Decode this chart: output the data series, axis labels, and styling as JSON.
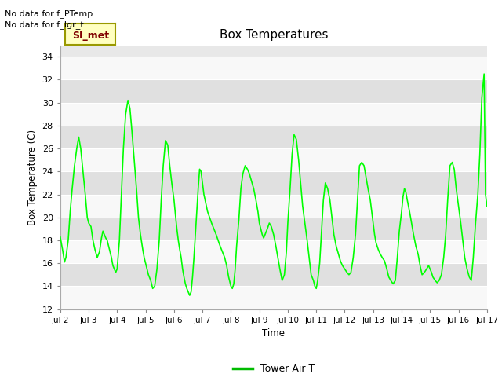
{
  "title": "Box Temperatures",
  "ylabel": "Box Temperature (C)",
  "xlabel": "Time",
  "ylim": [
    12,
    35
  ],
  "yticks": [
    12,
    14,
    16,
    18,
    20,
    22,
    24,
    26,
    28,
    30,
    32,
    34
  ],
  "xtick_labels": [
    "Jul 2",
    "Jul 3",
    "Jul 4",
    "Jul 5",
    "Jul 6",
    "Jul 7",
    "Jul 8",
    "Jul 9",
    "Jul 10",
    "Jul 11",
    "Jul 12",
    "Jul 13",
    "Jul 14",
    "Jul 15",
    "Jul 16",
    "Jul 17"
  ],
  "no_data_texts": [
    "No data for f_PTemp",
    "No data for f_lgr_t"
  ],
  "tab_label": "SI_met",
  "tab_color_bg": "#ffffc0",
  "tab_color_text": "#800000",
  "tab_color_border": "#999900",
  "line_color": "#00ff00",
  "line_width": 1.2,
  "legend_label": "Tower Air T",
  "legend_line_color": "#00bb00",
  "bg_color": "#ffffff",
  "plot_bg_color": "#e8e8e8",
  "x_values": [
    0.0,
    0.08,
    0.15,
    0.2,
    0.28,
    0.35,
    0.42,
    0.5,
    0.58,
    0.65,
    0.72,
    0.8,
    0.88,
    0.95,
    1.0,
    1.08,
    1.15,
    1.22,
    1.3,
    1.38,
    1.45,
    1.5,
    1.55,
    1.6,
    1.65,
    1.7,
    1.75,
    1.8,
    1.85,
    1.9,
    1.95,
    2.0,
    2.08,
    2.15,
    2.22,
    2.3,
    2.38,
    2.45,
    2.52,
    2.6,
    2.68,
    2.75,
    2.82,
    2.9,
    2.95,
    3.0,
    3.05,
    3.1,
    3.18,
    3.25,
    3.32,
    3.4,
    3.48,
    3.55,
    3.62,
    3.7,
    3.78,
    3.85,
    3.92,
    4.0,
    4.05,
    4.1,
    4.15,
    4.2,
    4.25,
    4.3,
    4.35,
    4.4,
    4.45,
    4.5,
    4.55,
    4.6,
    4.65,
    4.7,
    4.75,
    4.8,
    4.85,
    4.9,
    4.95,
    5.0,
    5.05,
    5.12,
    5.18,
    5.25,
    5.32,
    5.4,
    5.48,
    5.55,
    5.62,
    5.7,
    5.78,
    5.85,
    5.92,
    6.0,
    6.05,
    6.1,
    6.15,
    6.2,
    6.28,
    6.35,
    6.42,
    6.5,
    6.58,
    6.65,
    6.72,
    6.8,
    6.88,
    6.95,
    7.0,
    7.05,
    7.1,
    7.15,
    7.2,
    7.28,
    7.35,
    7.42,
    7.5,
    7.58,
    7.65,
    7.72,
    7.8,
    7.88,
    7.95,
    8.0,
    8.08,
    8.15,
    8.22,
    8.3,
    8.38,
    8.45,
    8.52,
    8.6,
    8.68,
    8.75,
    8.82,
    8.9,
    8.95,
    9.0,
    9.05,
    9.12,
    9.18,
    9.25,
    9.32,
    9.4,
    9.48,
    9.55,
    9.62,
    9.7,
    9.78,
    9.85,
    9.92,
    10.0,
    10.08,
    10.15,
    10.22,
    10.3,
    10.38,
    10.45,
    10.52,
    10.6,
    10.68,
    10.75,
    10.82,
    10.9,
    10.95,
    11.0,
    11.05,
    11.1,
    11.18,
    11.25,
    11.32,
    11.4,
    11.48,
    11.55,
    11.62,
    11.7,
    11.78,
    11.85,
    11.92,
    12.0,
    12.05,
    12.1,
    12.15,
    12.2,
    12.28,
    12.35,
    12.42,
    12.5,
    12.58,
    12.65,
    12.72,
    12.8,
    12.88,
    12.95,
    13.0,
    13.05,
    13.1,
    13.18,
    13.25,
    13.32,
    13.4,
    13.48,
    13.55,
    13.62,
    13.7,
    13.78,
    13.85,
    13.92,
    14.0,
    14.08,
    14.15,
    14.22,
    14.3,
    14.38,
    14.45,
    14.52,
    14.6,
    14.68,
    14.75,
    14.82,
    14.9,
    14.95,
    15.0
  ],
  "y_values": [
    18.3,
    17.2,
    16.1,
    16.5,
    18.0,
    20.5,
    22.5,
    24.5,
    26.0,
    27.0,
    26.0,
    24.0,
    22.0,
    20.0,
    19.5,
    19.2,
    18.0,
    17.2,
    16.5,
    17.0,
    18.2,
    18.8,
    18.5,
    18.2,
    18.0,
    17.5,
    17.0,
    16.5,
    15.8,
    15.5,
    15.2,
    15.5,
    18.0,
    22.0,
    26.0,
    29.0,
    30.2,
    29.5,
    27.5,
    25.0,
    22.5,
    20.0,
    18.5,
    17.2,
    16.5,
    16.0,
    15.5,
    15.0,
    14.5,
    13.8,
    14.0,
    15.5,
    18.0,
    21.5,
    24.5,
    26.7,
    26.3,
    24.5,
    23.0,
    21.5,
    20.2,
    19.0,
    18.0,
    17.2,
    16.5,
    15.5,
    14.8,
    14.2,
    13.8,
    13.5,
    13.2,
    13.5,
    14.8,
    16.5,
    18.5,
    20.5,
    22.5,
    24.2,
    24.0,
    23.0,
    22.0,
    21.2,
    20.5,
    20.0,
    19.5,
    19.0,
    18.5,
    18.0,
    17.5,
    17.0,
    16.5,
    15.8,
    14.8,
    14.0,
    13.8,
    14.2,
    15.5,
    17.5,
    19.8,
    22.5,
    23.8,
    24.5,
    24.2,
    23.8,
    23.2,
    22.5,
    21.5,
    20.5,
    19.5,
    19.0,
    18.5,
    18.2,
    18.5,
    19.0,
    19.5,
    19.2,
    18.5,
    17.5,
    16.5,
    15.5,
    14.5,
    15.0,
    17.0,
    19.5,
    22.5,
    25.5,
    27.2,
    26.8,
    25.0,
    23.0,
    21.0,
    19.5,
    18.0,
    16.5,
    15.0,
    14.5,
    14.0,
    13.8,
    14.5,
    16.0,
    18.5,
    21.5,
    23.0,
    22.5,
    21.5,
    20.0,
    18.5,
    17.5,
    16.8,
    16.2,
    15.8,
    15.5,
    15.2,
    15.0,
    15.2,
    16.5,
    18.5,
    21.5,
    24.5,
    24.8,
    24.5,
    23.5,
    22.5,
    21.5,
    20.5,
    19.5,
    18.5,
    17.8,
    17.2,
    16.8,
    16.5,
    16.2,
    15.5,
    14.8,
    14.5,
    14.2,
    14.5,
    16.5,
    18.8,
    20.5,
    21.8,
    22.5,
    22.2,
    21.5,
    20.5,
    19.5,
    18.5,
    17.5,
    16.8,
    15.8,
    15.0,
    15.2,
    15.5,
    15.8,
    15.5,
    15.2,
    14.8,
    14.5,
    14.3,
    14.5,
    15.0,
    16.5,
    18.5,
    21.5,
    24.5,
    24.8,
    24.2,
    22.5,
    21.0,
    19.5,
    18.0,
    16.5,
    15.5,
    14.8,
    14.5,
    16.5,
    19.5,
    22.0,
    25.5,
    30.4,
    32.5,
    22.0,
    21.0
  ]
}
